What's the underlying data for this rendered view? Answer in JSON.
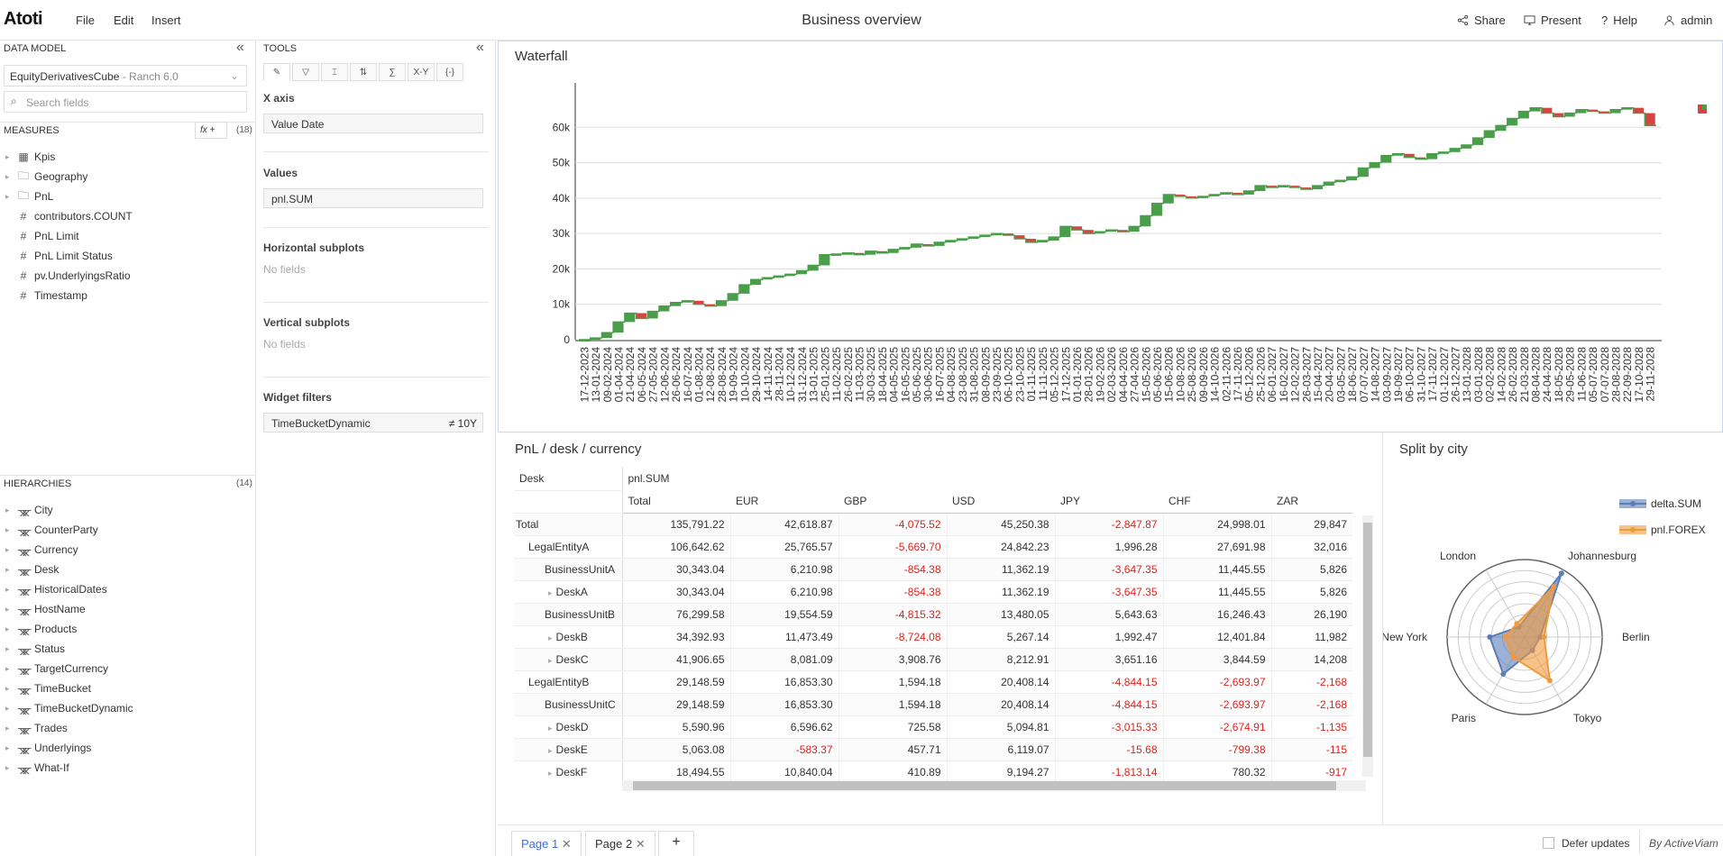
{
  "header": {
    "logo": "Atoti",
    "menu": [
      "File",
      "Edit",
      "Insert"
    ],
    "title": "Business overview",
    "actions": {
      "share": "Share",
      "present": "Present",
      "help": "Help",
      "user": "admin"
    }
  },
  "datamodel": {
    "title": "DATA MODEL",
    "cube": "EquityDerivativesCube",
    "cube_suffix": " - Ranch 6.0",
    "search_placeholder": "Search fields",
    "measures_title": "MEASURES",
    "fx": "fx +",
    "measures_count": "(18)",
    "measures": [
      {
        "label": "Kpis",
        "icon": "calc-icon",
        "caret": true
      },
      {
        "label": "Geography",
        "icon": "folder-icon",
        "caret": true
      },
      {
        "label": "PnL",
        "icon": "folder-icon",
        "caret": true
      },
      {
        "label": "contributors.COUNT",
        "icon": "hash-icon"
      },
      {
        "label": "PnL Limit",
        "icon": "hash-icon"
      },
      {
        "label": "PnL Limit Status",
        "icon": "hash-icon"
      },
      {
        "label": "pv.UnderlyingsRatio",
        "icon": "hash-icon"
      },
      {
        "label": "Timestamp",
        "icon": "hash-icon"
      }
    ],
    "hierarchies_title": "HIERARCHIES",
    "hierarchies_count": "(14)",
    "hierarchies": [
      "City",
      "CounterParty",
      "Currency",
      "Desk",
      "HistoricalDates",
      "HostName",
      "Products",
      "Status",
      "TargetCurrency",
      "TimeBucket",
      "TimeBucketDynamic",
      "Trades",
      "Underlyings",
      "What-If"
    ]
  },
  "tools": {
    "title": "TOOLS",
    "xaxis_label": "X axis",
    "xaxis_value": "Value Date",
    "values_label": "Values",
    "values_value": "pnl.SUM",
    "hsub_label": "Horizontal subplots",
    "hsub_empty": "No fields",
    "vsub_label": "Vertical subplots",
    "vsub_empty": "No fields",
    "filters_label": "Widget filters",
    "filter_field": "TimeBucketDynamic",
    "filter_value": "≠ 10Y",
    "xy": "X-Y",
    "braces": "{-}"
  },
  "waterfall": {
    "title": "Waterfall"
  },
  "chart_data": {
    "type": "line",
    "title": "Waterfall",
    "yticks": [
      "0",
      "10k",
      "20k",
      "30k",
      "40k",
      "50k",
      "60k"
    ],
    "ylim": [
      0,
      70000
    ],
    "x": [
      "17-12-2023",
      "13-01-2024",
      "09-02-2024",
      "01-04-2024",
      "21-04-2024",
      "06-05-2024",
      "27-05-2024",
      "12-06-2024",
      "26-06-2024",
      "16-07-2024",
      "01-08-2024",
      "12-08-2024",
      "28-08-2024",
      "19-09-2024",
      "10-10-2024",
      "29-10-2024",
      "14-11-2024",
      "28-11-2024",
      "10-12-2024",
      "31-12-2024",
      "13-01-2025",
      "25-01-2025",
      "11-02-2025",
      "26-02-2025",
      "11-03-2025",
      "30-03-2025",
      "18-04-2025",
      "04-05-2025",
      "16-05-2025",
      "05-06-2025",
      "30-06-2025",
      "16-07-2025",
      "04-08-2025",
      "23-08-2025",
      "31-08-2025",
      "08-09-2025",
      "23-09-2025",
      "06-10-2025",
      "23-10-2025",
      "01-11-2025",
      "11-11-2025",
      "05-12-2025",
      "17-12-2025",
      "01-01-2026",
      "28-01-2026",
      "19-02-2026",
      "02-03-2026",
      "04-04-2026",
      "27-04-2026",
      "15-05-2026",
      "05-06-2026",
      "15-06-2026",
      "10-08-2026",
      "25-08-2026",
      "09-09-2026",
      "14-10-2026",
      "02-11-2026",
      "17-11-2026",
      "05-12-2026",
      "25-12-2026",
      "06-01-2027",
      "16-02-2027",
      "12-02-2027",
      "26-03-2027",
      "15-04-2027",
      "20-04-2027",
      "03-05-2027",
      "18-06-2027",
      "07-07-2027",
      "14-08-2027",
      "03-09-2027",
      "19-09-2027",
      "06-10-2027",
      "31-10-2027",
      "17-11-2027",
      "01-12-2027",
      "26-12-2027",
      "13-01-2028",
      "03-01-2028",
      "02-02-2028",
      "14-02-2028",
      "26-02-2028",
      "21-03-2028",
      "08-04-2028",
      "24-04-2028",
      "18-05-2028",
      "29-05-2028",
      "11-06-2028",
      "05-07-2028",
      "07-07-2028",
      "28-08-2028",
      "22-09-2028",
      "17-10-2028",
      "29-11-2028"
    ],
    "y": [
      0,
      500,
      2000,
      5000,
      7500,
      6000,
      8000,
      9500,
      10500,
      11000,
      10000,
      9500,
      11000,
      13000,
      15500,
      17000,
      17500,
      18000,
      18500,
      19500,
      21000,
      24000,
      24200,
      24500,
      24000,
      25000,
      24500,
      25500,
      26000,
      27000,
      26500,
      27500,
      28000,
      28500,
      29000,
      29500,
      30000,
      29500,
      28500,
      27500,
      28000,
      29000,
      32000,
      31000,
      30000,
      30500,
      31000,
      30500,
      32000,
      35000,
      38500,
      41000,
      40500,
      40000,
      40500,
      41000,
      41500,
      41000,
      42000,
      43500,
      43000,
      43500,
      43000,
      42500,
      43500,
      44500,
      45000,
      46000,
      48500,
      50000,
      52000,
      52500,
      51500,
      51000,
      52500,
      53000,
      54000,
      55000,
      57000,
      59000,
      60500,
      62500,
      64500,
      65500,
      64000,
      63000,
      64000,
      65000,
      64500,
      64000,
      65000,
      65500,
      64000,
      60500
    ]
  },
  "pnltable": {
    "title": "PnL / desk / currency",
    "desk_label": "Desk",
    "measure_label": "pnl.SUM",
    "cols": [
      "Total",
      "EUR",
      "GBP",
      "USD",
      "JPY",
      "CHF",
      "ZAR"
    ],
    "rows": [
      {
        "label": "Total",
        "indent": 0,
        "expand": false,
        "vals": [
          "135,791.22",
          "42,618.87",
          "-4,075.52",
          "45,250.38",
          "-2,847.87",
          "24,998.01",
          "29,847"
        ]
      },
      {
        "label": "LegalEntityA",
        "indent": 1,
        "expand": false,
        "vals": [
          "106,642.62",
          "25,765.57",
          "-5,669.70",
          "24,842.23",
          "1,996.28",
          "27,691.98",
          "32,016"
        ]
      },
      {
        "label": "BusinessUnitA",
        "indent": 2,
        "expand": false,
        "vals": [
          "30,343.04",
          "6,210.98",
          "-854.38",
          "11,362.19",
          "-3,647.35",
          "11,445.55",
          "5,826"
        ]
      },
      {
        "label": "DeskA",
        "indent": 3,
        "expand": true,
        "vals": [
          "30,343.04",
          "6,210.98",
          "-854.38",
          "11,362.19",
          "-3,647.35",
          "11,445.55",
          "5,826"
        ]
      },
      {
        "label": "BusinessUnitB",
        "indent": 2,
        "expand": false,
        "vals": [
          "76,299.58",
          "19,554.59",
          "-4,815.32",
          "13,480.05",
          "5,643.63",
          "16,246.43",
          "26,190"
        ]
      },
      {
        "label": "DeskB",
        "indent": 3,
        "expand": true,
        "vals": [
          "34,392.93",
          "11,473.49",
          "-8,724.08",
          "5,267.14",
          "1,992.47",
          "12,401.84",
          "11,982"
        ]
      },
      {
        "label": "DeskC",
        "indent": 3,
        "expand": true,
        "vals": [
          "41,906.65",
          "8,081.09",
          "3,908.76",
          "8,212.91",
          "3,651.16",
          "3,844.59",
          "14,208"
        ]
      },
      {
        "label": "LegalEntityB",
        "indent": 1,
        "expand": false,
        "vals": [
          "29,148.59",
          "16,853.30",
          "1,594.18",
          "20,408.14",
          "-4,844.15",
          "-2,693.97",
          "-2,168"
        ]
      },
      {
        "label": "BusinessUnitC",
        "indent": 2,
        "expand": false,
        "vals": [
          "29,148.59",
          "16,853.30",
          "1,594.18",
          "20,408.14",
          "-4,844.15",
          "-2,693.97",
          "-2,168"
        ]
      },
      {
        "label": "DeskD",
        "indent": 3,
        "expand": true,
        "vals": [
          "5,590.96",
          "6,596.62",
          "725.58",
          "5,094.81",
          "-3,015.33",
          "-2,674.91",
          "-1,135"
        ]
      },
      {
        "label": "DeskE",
        "indent": 3,
        "expand": true,
        "vals": [
          "5,063.08",
          "-583.37",
          "457.71",
          "6,119.07",
          "-15.68",
          "-799.38",
          "-115"
        ]
      },
      {
        "label": "DeskF",
        "indent": 3,
        "expand": true,
        "vals": [
          "18,494.55",
          "10,840.04",
          "410.89",
          "9,194.27",
          "-1,813.14",
          "780.32",
          "-917"
        ]
      }
    ]
  },
  "split": {
    "title": "Split by city",
    "legend": [
      "delta.SUM",
      "pnl.FOREX"
    ],
    "cities": [
      "Johannesburg",
      "Berlin",
      "Tokyo",
      "Paris",
      "New York",
      "London"
    ],
    "colors": [
      "#5b7db8",
      "#f29a3b"
    ],
    "delta": [
      0.95,
      0.2,
      0.2,
      0.55,
      0.45,
      0.15
    ],
    "forex": [
      0.75,
      0.25,
      0.65,
      0.3,
      0.25,
      0.2
    ]
  },
  "footer": {
    "tabs": [
      "Page 1",
      "Page 2"
    ],
    "add": "+",
    "defer": "Defer updates",
    "brand": "By ActiveViam"
  }
}
